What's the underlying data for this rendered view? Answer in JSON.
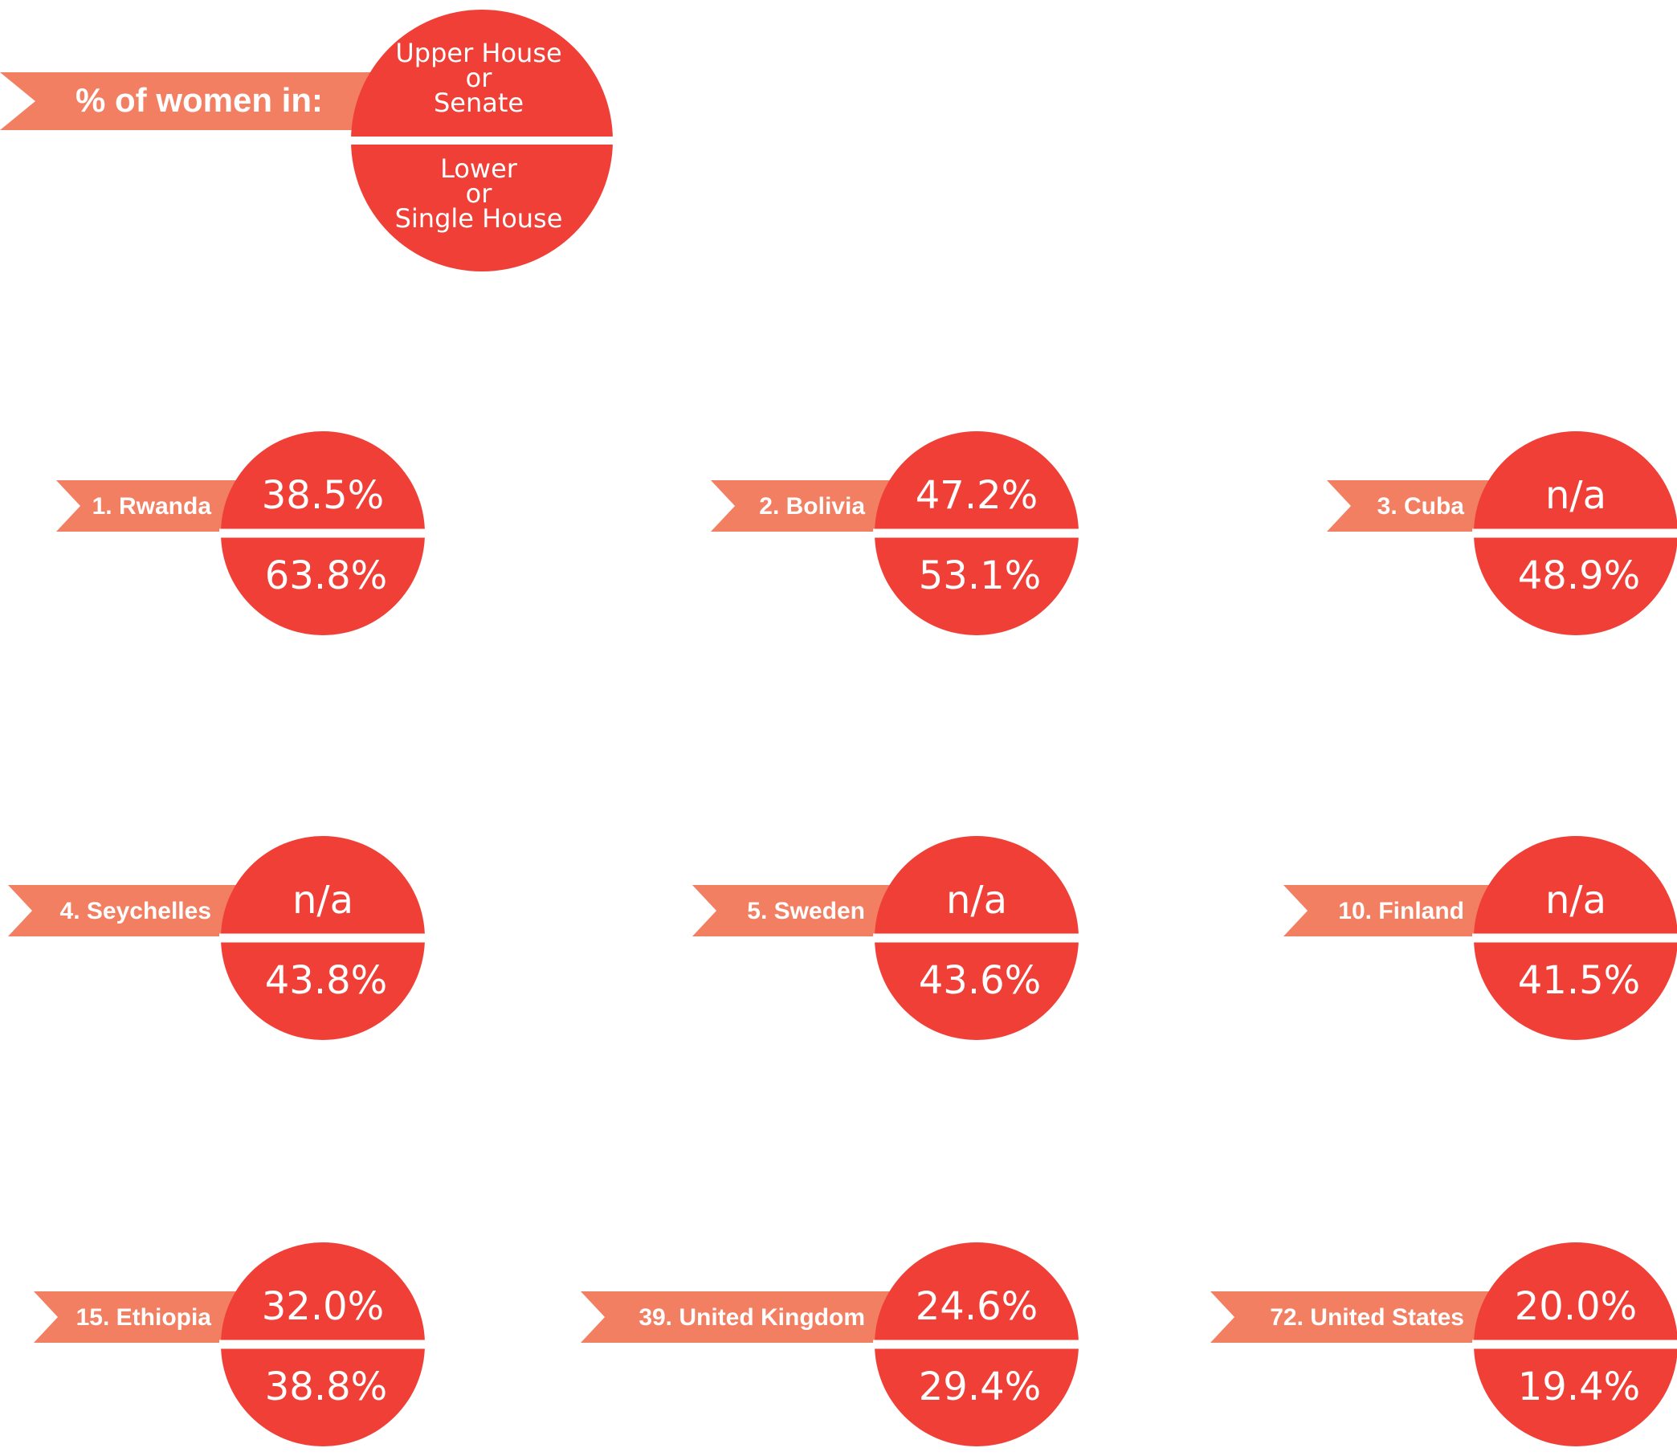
{
  "chart_data": {
    "type": "infographic",
    "legend": {
      "ribbon_label": "% of women in:",
      "upper_label_lines": [
        "Upper House",
        "or",
        "Senate"
      ],
      "lower_label_lines": [
        "Lower",
        "or",
        "Single House"
      ]
    },
    "countries": [
      {
        "label": "1. Rwanda",
        "upper": "38.5%",
        "lower": "63.8%"
      },
      {
        "label": "2. Bolivia",
        "upper": "47.2%",
        "lower": "53.1%"
      },
      {
        "label": "3. Cuba",
        "upper": "n/a",
        "lower": "48.9%"
      },
      {
        "label": "4. Seychelles",
        "upper": "n/a",
        "lower": "43.8%"
      },
      {
        "label": "5. Sweden",
        "upper": "n/a",
        "lower": "43.6%"
      },
      {
        "label": "10. Finland",
        "upper": "n/a",
        "lower": "41.5%"
      },
      {
        "label": "15. Ethiopia",
        "upper": "32.0%",
        "lower": "38.8%"
      },
      {
        "label": "39. United Kingdom",
        "upper": "24.6%",
        "lower": "29.4%"
      },
      {
        "label": "72. United States",
        "upper": "20.0%",
        "lower": "19.4%"
      }
    ],
    "colors": {
      "circle": "#ef3f36",
      "ribbon": "#f37f62",
      "background": "#ffffff"
    }
  }
}
